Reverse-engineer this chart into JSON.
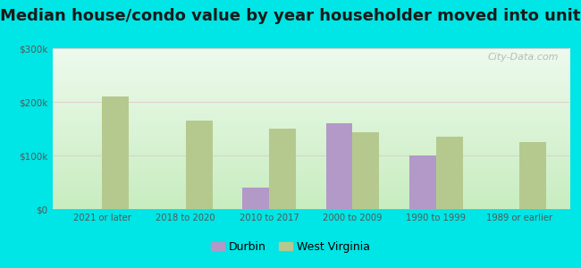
{
  "title": "Median house/condo value by year householder moved into unit",
  "categories": [
    "2021 or later",
    "2018 to 2020",
    "2010 to 2017",
    "2000 to 2009",
    "1990 to 1999",
    "1989 or earlier"
  ],
  "durbin": [
    null,
    null,
    40000,
    160000,
    100000,
    null
  ],
  "west_virginia": [
    210000,
    165000,
    150000,
    143000,
    135000,
    125000
  ],
  "durbin_color": "#b399c8",
  "wv_color": "#b5c98e",
  "ylim": [
    0,
    300000
  ],
  "yticks": [
    0,
    100000,
    200000,
    300000
  ],
  "ytick_labels": [
    "$0",
    "$100k",
    "$200k",
    "$300k"
  ],
  "plot_bg_top": "#e8f5e0",
  "plot_bg_bottom": "#d8f0d0",
  "outer_background": "#00e5e5",
  "title_fontsize": 13,
  "bar_width": 0.32,
  "legend_durbin": "Durbin",
  "legend_wv": "West Virginia",
  "watermark": "City-Data.com"
}
